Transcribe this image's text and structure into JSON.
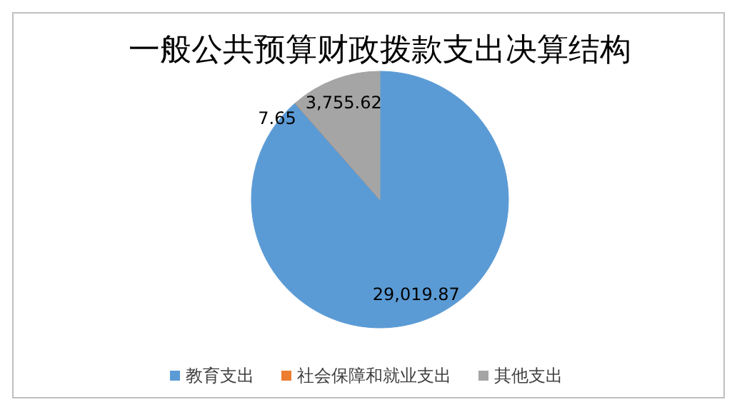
{
  "chart_data": {
    "type": "pie",
    "title": "一般公共预算财政拨款支出决算结构",
    "categories": [
      "教育支出",
      "社会保障和就业支出",
      "其他支出"
    ],
    "values": [
      29019.87,
      7.65,
      3755.62
    ],
    "colors": [
      "#5b9bd5",
      "#ed7d31",
      "#a5a5a5"
    ],
    "value_labels": [
      "29,019.87",
      "7.65",
      "3,755.62"
    ],
    "legend": "bottom"
  }
}
